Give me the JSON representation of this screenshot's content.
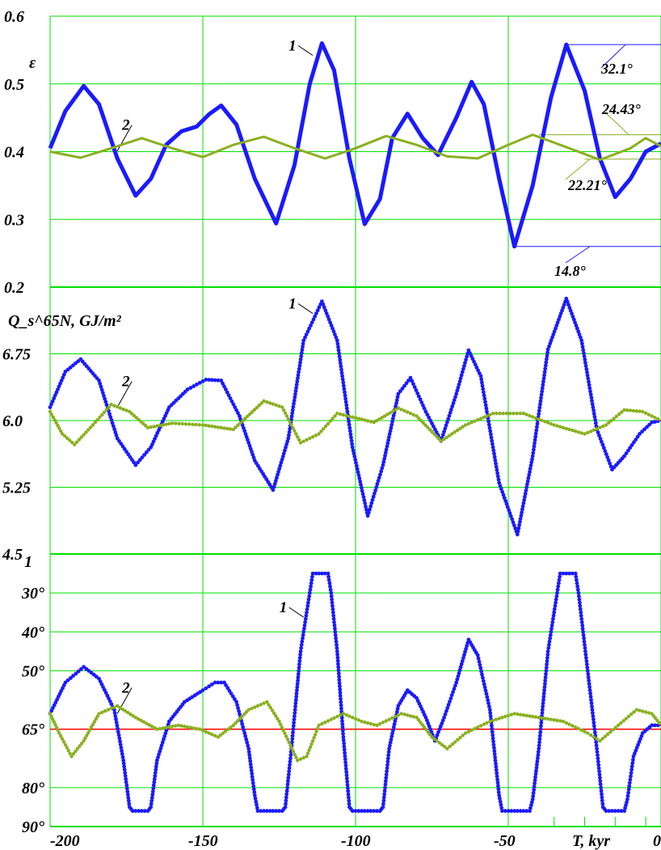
{
  "chart_data": {
    "type": "line",
    "x_axis": {
      "label": "T, kyr",
      "range": [
        -200,
        0
      ],
      "ticks": [
        -200,
        -150,
        -100,
        -50,
        0
      ],
      "tick_labels": [
        "-200",
        "-150",
        "-100",
        "-50",
        "0"
      ],
      "grid": true
    },
    "colors": {
      "series1": "#1a1aff",
      "series2": "#8ab020",
      "guide": "#ff0000",
      "grid": "#00e000"
    },
    "panels": [
      {
        "ylabel": "ε",
        "ylim": [
          0.2,
          0.6
        ],
        "y_ticks": [
          0.2,
          0.3,
          0.4,
          0.5,
          0.6
        ],
        "y_tick_labels": [
          "0.2",
          "0.3",
          "0.4",
          "0.5",
          "0.6"
        ],
        "series": [
          {
            "name": "1",
            "points": [
              [
                -200,
                0.405
              ],
              [
                -195,
                0.46
              ],
              [
                -189,
                0.497
              ],
              [
                -184,
                0.47
              ],
              [
                -178,
                0.39
              ],
              [
                -172,
                0.335
              ],
              [
                -167,
                0.36
              ],
              [
                -162,
                0.41
              ],
              [
                -157,
                0.43
              ],
              [
                -152,
                0.437
              ],
              [
                -148,
                0.455
              ],
              [
                -144,
                0.468
              ],
              [
                -139,
                0.44
              ],
              [
                -133,
                0.36
              ],
              [
                -126,
                0.294
              ],
              [
                -120,
                0.38
              ],
              [
                -115,
                0.5
              ],
              [
                -111,
                0.56
              ],
              [
                -107,
                0.52
              ],
              [
                -102,
                0.39
              ],
              [
                -97,
                0.293
              ],
              [
                -92,
                0.33
              ],
              [
                -88,
                0.42
              ],
              [
                -83,
                0.456
              ],
              [
                -78,
                0.42
              ],
              [
                -73,
                0.395
              ],
              [
                -67,
                0.45
              ],
              [
                -62,
                0.503
              ],
              [
                -58,
                0.47
              ],
              [
                -53,
                0.36
              ],
              [
                -48,
                0.26
              ],
              [
                -42,
                0.35
              ],
              [
                -36,
                0.48
              ],
              [
                -31,
                0.558
              ],
              [
                -25,
                0.49
              ],
              [
                -20,
                0.39
              ],
              [
                -15,
                0.333
              ],
              [
                -10,
                0.36
              ],
              [
                -5,
                0.4
              ],
              [
                0,
                0.412
              ]
            ]
          },
          {
            "name": "2",
            "points": [
              [
                -200,
                0.4
              ],
              [
                -190,
                0.391
              ],
              [
                -180,
                0.405
              ],
              [
                -170,
                0.42
              ],
              [
                -160,
                0.405
              ],
              [
                -150,
                0.392
              ],
              [
                -140,
                0.41
              ],
              [
                -130,
                0.422
              ],
              [
                -120,
                0.405
              ],
              [
                -110,
                0.39
              ],
              [
                -100,
                0.405
              ],
              [
                -90,
                0.423
              ],
              [
                -80,
                0.41
              ],
              [
                -70,
                0.393
              ],
              [
                -60,
                0.39
              ],
              [
                -50,
                0.41
              ],
              [
                -42,
                0.425
              ],
              [
                -30,
                0.405
              ],
              [
                -20,
                0.388
              ],
              [
                -10,
                0.405
              ],
              [
                -5,
                0.42
              ],
              [
                0,
                0.408
              ]
            ]
          }
        ],
        "annotations": [
          "32.1°",
          "24.43°",
          "22.21°",
          "14.8°"
        ]
      },
      {
        "ylabel": "Q_s^65N, GJ/m²",
        "ylim": [
          4.5,
          7.5
        ],
        "y_ticks": [
          4.5,
          5.25,
          6.0,
          6.75
        ],
        "y_tick_labels": [
          "4.5",
          "5.25",
          "6.0",
          "6.75"
        ],
        "series": [
          {
            "name": "1",
            "points": [
              [
                -200,
                6.15
              ],
              [
                -195,
                6.55
              ],
              [
                -190,
                6.69
              ],
              [
                -184,
                6.45
              ],
              [
                -178,
                5.8
              ],
              [
                -172,
                5.5
              ],
              [
                -167,
                5.7
              ],
              [
                -161,
                6.15
              ],
              [
                -155,
                6.35
              ],
              [
                -149,
                6.46
              ],
              [
                -144,
                6.45
              ],
              [
                -138,
                6.05
              ],
              [
                -133,
                5.55
              ],
              [
                -127,
                5.22
              ],
              [
                -122,
                5.8
              ],
              [
                -117,
                6.9
              ],
              [
                -111,
                7.34
              ],
              [
                -106,
                6.9
              ],
              [
                -101,
                5.7
              ],
              [
                -96,
                4.93
              ],
              [
                -91,
                5.5
              ],
              [
                -86,
                6.3
              ],
              [
                -82,
                6.48
              ],
              [
                -77,
                6.1
              ],
              [
                -72,
                5.77
              ],
              [
                -67,
                6.3
              ],
              [
                -63,
                6.79
              ],
              [
                -59,
                6.5
              ],
              [
                -53,
                5.3
              ],
              [
                -47,
                4.72
              ],
              [
                -42,
                5.6
              ],
              [
                -37,
                6.8
              ],
              [
                -31,
                7.37
              ],
              [
                -26,
                6.9
              ],
              [
                -21,
                5.9
              ],
              [
                -16,
                5.45
              ],
              [
                -12,
                5.6
              ],
              [
                -7,
                5.85
              ],
              [
                -3,
                5.98
              ],
              [
                0,
                6.0
              ]
            ]
          },
          {
            "name": "2",
            "points": [
              [
                -200,
                6.1
              ],
              [
                -196,
                5.85
              ],
              [
                -192,
                5.73
              ],
              [
                -186,
                5.95
              ],
              [
                -180,
                6.18
              ],
              [
                -174,
                6.1
              ],
              [
                -168,
                5.92
              ],
              [
                -160,
                5.97
              ],
              [
                -150,
                5.95
              ],
              [
                -140,
                5.9
              ],
              [
                -130,
                6.22
              ],
              [
                -124,
                6.15
              ],
              [
                -118,
                5.75
              ],
              [
                -112,
                5.85
              ],
              [
                -106,
                6.08
              ],
              [
                -100,
                6.03
              ],
              [
                -94,
                5.98
              ],
              [
                -86,
                6.14
              ],
              [
                -80,
                6.05
              ],
              [
                -72,
                5.77
              ],
              [
                -64,
                5.95
              ],
              [
                -55,
                6.08
              ],
              [
                -45,
                6.08
              ],
              [
                -35,
                5.95
              ],
              [
                -25,
                5.85
              ],
              [
                -18,
                5.95
              ],
              [
                -12,
                6.12
              ],
              [
                -6,
                6.1
              ],
              [
                0,
                6.0
              ]
            ]
          }
        ]
      },
      {
        "ylabel": "",
        "ylim": [
          90,
          20
        ],
        "y_ticks": [
          30,
          40,
          50,
          65,
          80,
          90
        ],
        "y_tick_labels": [
          "30°",
          "40°",
          "50°",
          "65°",
          "80°",
          "90°"
        ],
        "top_label": "1",
        "guide_value": 65,
        "series": [
          {
            "name": "1",
            "points": [
              [
                -200,
                61
              ],
              [
                -195,
                53
              ],
              [
                -189,
                49
              ],
              [
                -184,
                52
              ],
              [
                -179,
                60
              ],
              [
                -176,
                73
              ],
              [
                -174,
                85
              ],
              [
                -173,
                86
              ],
              [
                -168,
                86
              ],
              [
                -167,
                85
              ],
              [
                -165,
                73
              ],
              [
                -161,
                63
              ],
              [
                -156,
                58
              ],
              [
                -150,
                55
              ],
              [
                -146,
                53
              ],
              [
                -143,
                53
              ],
              [
                -139,
                58
              ],
              [
                -135,
                70
              ],
              [
                -133,
                82
              ],
              [
                -132,
                86
              ],
              [
                -124,
                86
              ],
              [
                -123,
                85
              ],
              [
                -121,
                70
              ],
              [
                -118,
                45
              ],
              [
                -115,
                30
              ],
              [
                -114,
                25
              ],
              [
                -109,
                25
              ],
              [
                -108,
                30
              ],
              [
                -106,
                45
              ],
              [
                -104,
                67
              ],
              [
                -102,
                85
              ],
              [
                -101,
                86
              ],
              [
                -92,
                86
              ],
              [
                -91,
                85
              ],
              [
                -89,
                70
              ],
              [
                -86,
                59
              ],
              [
                -83,
                55
              ],
              [
                -80,
                57
              ],
              [
                -77,
                62
              ],
              [
                -74,
                68
              ],
              [
                -71,
                62
              ],
              [
                -67,
                53
              ],
              [
                -63,
                42
              ],
              [
                -60,
                46
              ],
              [
                -56,
                60
              ],
              [
                -53,
                82
              ],
              [
                -52,
                86
              ],
              [
                -43,
                86
              ],
              [
                -42,
                83
              ],
              [
                -40,
                70
              ],
              [
                -37,
                45
              ],
              [
                -34,
                30
              ],
              [
                -33,
                25
              ],
              [
                -28,
                25
              ],
              [
                -27,
                30
              ],
              [
                -24,
                50
              ],
              [
                -21,
                70
              ],
              [
                -19,
                85
              ],
              [
                -18,
                86
              ],
              [
                -12,
                86
              ],
              [
                -11,
                83
              ],
              [
                -9,
                72
              ],
              [
                -6,
                66
              ],
              [
                -3,
                64
              ],
              [
                0,
                64
              ]
            ]
          },
          {
            "name": "2",
            "points": [
              [
                -200,
                61
              ],
              [
                -197,
                66
              ],
              [
                -193,
                72
              ],
              [
                -189,
                68
              ],
              [
                -184,
                61
              ],
              [
                -178,
                59
              ],
              [
                -172,
                62
              ],
              [
                -165,
                65
              ],
              [
                -158,
                64
              ],
              [
                -151,
                65
              ],
              [
                -145,
                67
              ],
              [
                -140,
                64
              ],
              [
                -135,
                60
              ],
              [
                -129,
                58
              ],
              [
                -125,
                63
              ],
              [
                -119,
                73
              ],
              [
                -116,
                72
              ],
              [
                -112,
                64
              ],
              [
                -104,
                61
              ],
              [
                -98,
                63
              ],
              [
                -93,
                64
              ],
              [
                -85,
                61
              ],
              [
                -80,
                62
              ],
              [
                -75,
                67
              ],
              [
                -70,
                70
              ],
              [
                -64,
                66
              ],
              [
                -56,
                63
              ],
              [
                -48,
                61
              ],
              [
                -40,
                62
              ],
              [
                -32,
                63
              ],
              [
                -24,
                66
              ],
              [
                -20,
                68
              ],
              [
                -14,
                64
              ],
              [
                -8,
                60
              ],
              [
                -3,
                61
              ],
              [
                0,
                64
              ]
            ]
          }
        ]
      }
    ]
  }
}
